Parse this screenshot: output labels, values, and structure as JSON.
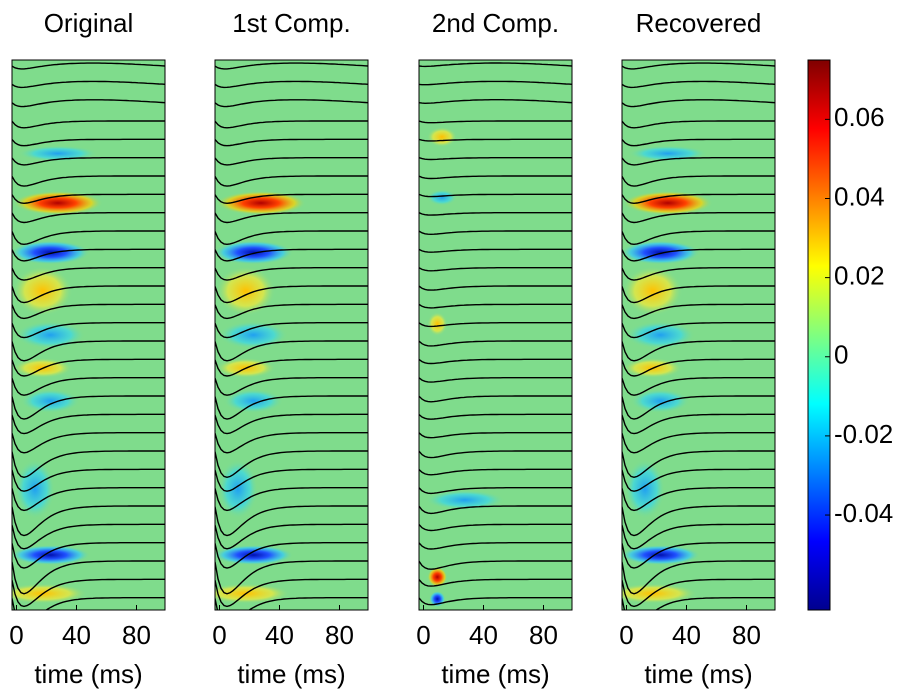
{
  "chart_data": [
    {
      "type": "heatmap",
      "title": "Original",
      "xlabel": "time (ms)",
      "xlim": [
        -3,
        99
      ],
      "xticks": [
        0,
        40,
        80
      ]
    },
    {
      "type": "heatmap",
      "title": "1st Comp.",
      "xlabel": "time (ms)",
      "xlim": [
        -3,
        99
      ],
      "xticks": [
        0,
        40,
        80
      ]
    },
    {
      "type": "heatmap",
      "title": "2nd Comp.",
      "xlabel": "time (ms)",
      "xlim": [
        -3,
        99
      ],
      "xticks": [
        0,
        40,
        80
      ]
    },
    {
      "type": "heatmap",
      "title": "Recovered",
      "xlabel": "time (ms)",
      "xlim": [
        -3,
        99
      ],
      "xticks": [
        0,
        40,
        80
      ]
    }
  ],
  "colorbar": {
    "colormap": "jet",
    "clim": [
      -0.064,
      0.075
    ],
    "ticks": [
      -0.04,
      -0.02,
      0,
      0.02,
      0.04,
      0.06
    ]
  }
}
